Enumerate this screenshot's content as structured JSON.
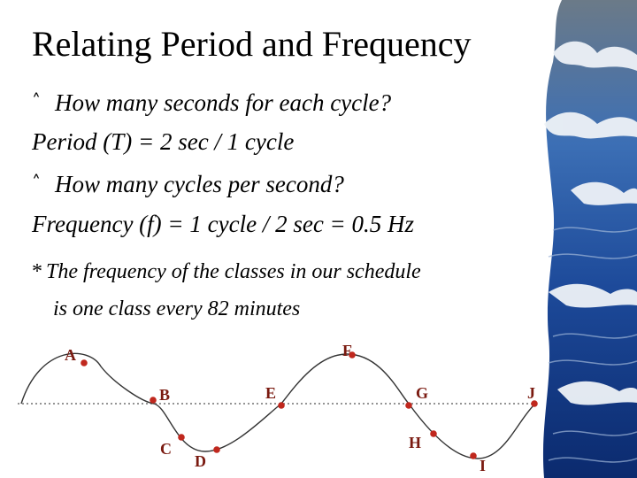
{
  "slide": {
    "title": "Relating Period and Frequency",
    "bullet_1": "How many seconds for each cycle?",
    "line_1": "Period (T) = 2 sec / 1 cycle",
    "bullet_2": "How many cycles per second?",
    "line_2": "Frequency (f) = 1 cycle / 2 sec = 0.5 Hz",
    "note_marker": "*",
    "note_line_1": "The frequency of the classes in our schedule",
    "note_line_2": "is one class every 82 minutes",
    "bullet_icon": "bullet-arrow-icon"
  },
  "wave_points": [
    {
      "label": "A"
    },
    {
      "label": "B"
    },
    {
      "label": "C"
    },
    {
      "label": "D"
    },
    {
      "label": "E"
    },
    {
      "label": "F"
    },
    {
      "label": "G"
    },
    {
      "label": "H"
    },
    {
      "label": "I"
    },
    {
      "label": "J"
    }
  ],
  "colors": {
    "point": "#c0281e",
    "label": "#7a1a10",
    "wave_dark": "#0b2a6e",
    "wave_mid": "#2f5fb0",
    "foam": "#e8eef6"
  }
}
